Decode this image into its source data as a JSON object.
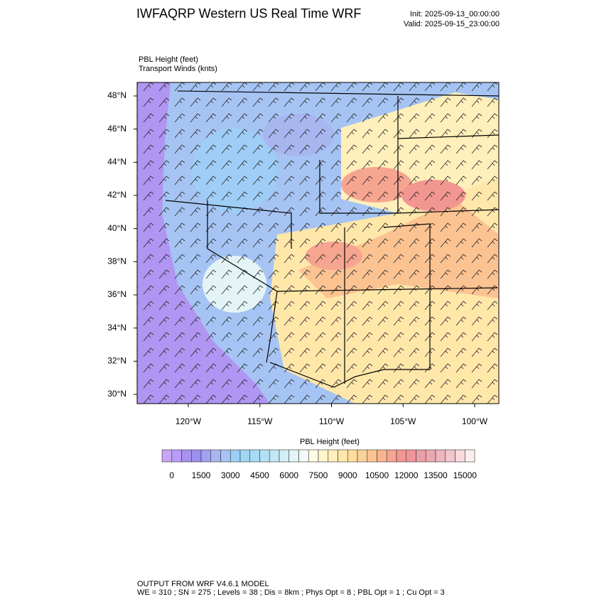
{
  "header": {
    "title": "IWFAQRP Western US Real Time WRF",
    "init": "Init: 2025-09-13_00:00:00",
    "valid": "Valid: 2025-09-15_23:00:00"
  },
  "map": {
    "field_label": "PBL Height   (feet)",
    "wind_label": "Transport Winds   (knts)",
    "lat_ticks": [
      {
        "value": 30,
        "label": "30°N"
      },
      {
        "value": 32,
        "label": "32°N"
      },
      {
        "value": 34,
        "label": "34°N"
      },
      {
        "value": 36,
        "label": "36°N"
      },
      {
        "value": 38,
        "label": "38°N"
      },
      {
        "value": 40,
        "label": "40°N"
      },
      {
        "value": 42,
        "label": "42°N"
      },
      {
        "value": 44,
        "label": "44°N"
      },
      {
        "value": 46,
        "label": "46°N"
      },
      {
        "value": 48,
        "label": "48°N"
      }
    ],
    "lon_ticks": [
      {
        "value": -120,
        "label": "120°W"
      },
      {
        "value": -115,
        "label": "115°W"
      },
      {
        "value": -110,
        "label": "110°W"
      },
      {
        "value": -105,
        "label": "105°W"
      },
      {
        "value": -100,
        "label": "100°W"
      }
    ]
  },
  "colorbar": {
    "title": "PBL Height  (feet)",
    "ticks": [
      0,
      1500,
      3000,
      4500,
      6000,
      7500,
      9000,
      10500,
      12000,
      13500,
      15000
    ],
    "step": 500,
    "colors": [
      "#c9a5f5",
      "#b89cf5",
      "#a892f0",
      "#9c8ff0",
      "#a0a4f0",
      "#a8b6f0",
      "#a6c4f3",
      "#9ecef5",
      "#9fd6f5",
      "#a5dcf5",
      "#b2e1f5",
      "#c3e8f5",
      "#d4eef6",
      "#e4f4f6",
      "#f2f9f8",
      "#fffbe4",
      "#fff5cc",
      "#ffefba",
      "#ffe7aa",
      "#ffdd9e",
      "#fcd198",
      "#fcc392",
      "#f9b48f",
      "#f6a590",
      "#f29692",
      "#f0959c",
      "#ec9ea6",
      "#eaa9b0",
      "#edb6bd",
      "#f2c6cc",
      "#f8d9dc",
      "#fdeeee"
    ]
  },
  "footer": {
    "line1": "OUTPUT FROM WRF V4.6.1 MODEL",
    "line2": "WE = 310 ; SN = 275 ; Levels = 38 ; Dis = 8km ; Phys Opt = 8 ; PBL Opt = 1 ; Cu Opt = 3"
  }
}
